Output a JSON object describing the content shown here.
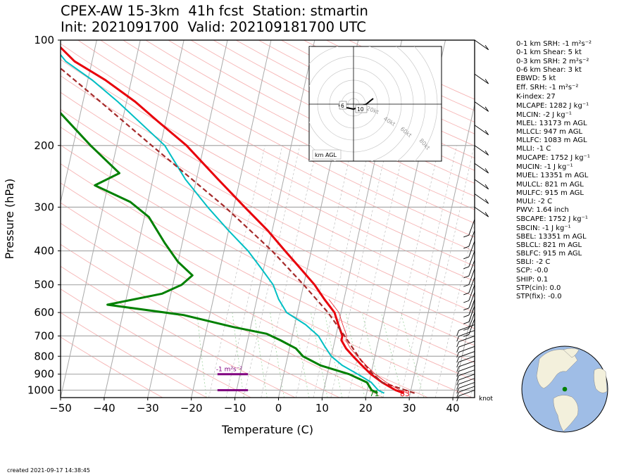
{
  "title": {
    "line1": "CPEX-AW 15-3km  41h fcst  Station: stmartin",
    "line2": "Init: 2021091700  Valid: 202109181700 UTC"
  },
  "chart_data": {
    "type": "line",
    "xlabel": "Temperature (C)",
    "ylabel": "Pressure (hPa)",
    "xlim": [
      -50,
      45
    ],
    "ylim": [
      1050,
      100
    ],
    "log_y": true,
    "skew": true,
    "x_ticks": [
      -50,
      -40,
      -30,
      -20,
      -10,
      0,
      10,
      20,
      30,
      40
    ],
    "y_ticks": [
      1000,
      900,
      800,
      700,
      600,
      500,
      400,
      300,
      200,
      100
    ],
    "colors": {
      "temperature": "#e8000b",
      "dewpoint": "#008000",
      "wetbulb": "#00bfc4",
      "parcel": "#a52a2a",
      "srh_bar": "#800080"
    },
    "series": [
      {
        "key": "temperature",
        "values": [
          [
            1020,
            28.5
          ],
          [
            1000,
            26.5
          ],
          [
            950,
            23.0
          ],
          [
            900,
            20.0
          ],
          [
            850,
            17.5
          ],
          [
            800,
            15.0
          ],
          [
            760,
            13.0
          ],
          [
            720,
            11.5
          ],
          [
            700,
            11.5
          ],
          [
            650,
            10.0
          ],
          [
            600,
            8.5
          ],
          [
            550,
            5.5
          ],
          [
            500,
            2.5
          ],
          [
            450,
            -1.5
          ],
          [
            400,
            -6.0
          ],
          [
            350,
            -11.0
          ],
          [
            300,
            -17.5
          ],
          [
            250,
            -25.0
          ],
          [
            200,
            -34.0
          ],
          [
            170,
            -42.0
          ],
          [
            150,
            -48.0
          ],
          [
            130,
            -56.0
          ],
          [
            115,
            -64.0
          ],
          [
            100,
            -70.0
          ]
        ]
      },
      {
        "key": "dewpoint",
        "values": [
          [
            1020,
            22.5
          ],
          [
            1000,
            21.0
          ],
          [
            950,
            19.5
          ],
          [
            900,
            15.0
          ],
          [
            850,
            8.0
          ],
          [
            800,
            3.5
          ],
          [
            760,
            1.5
          ],
          [
            720,
            -2.5
          ],
          [
            690,
            -6.0
          ],
          [
            660,
            -14.0
          ],
          [
            610,
            -26.0
          ],
          [
            570,
            -44.0
          ],
          [
            530,
            -32.0
          ],
          [
            500,
            -28.0
          ],
          [
            470,
            -26.0
          ],
          [
            430,
            -30.0
          ],
          [
            380,
            -34.0
          ],
          [
            320,
            -39.0
          ],
          [
            290,
            -44.0
          ],
          [
            260,
            -53.0
          ],
          [
            240,
            -48.0
          ],
          [
            200,
            -56.0
          ],
          [
            160,
            -65.0
          ],
          [
            140,
            -74.0
          ],
          [
            100,
            -85.0
          ]
        ]
      },
      {
        "key": "wetbulb",
        "values": [
          [
            1020,
            24.0
          ],
          [
            1000,
            22.5
          ],
          [
            950,
            20.5
          ],
          [
            900,
            17.0
          ],
          [
            850,
            13.0
          ],
          [
            800,
            10.0
          ],
          [
            750,
            8.0
          ],
          [
            700,
            6.0
          ],
          [
            650,
            2.5
          ],
          [
            600,
            -2.5
          ],
          [
            550,
            -5.0
          ],
          [
            500,
            -7.0
          ],
          [
            450,
            -10.5
          ],
          [
            400,
            -14.5
          ],
          [
            350,
            -20.0
          ],
          [
            300,
            -26.0
          ],
          [
            250,
            -32.5
          ],
          [
            200,
            -39.0
          ],
          [
            150,
            -52.0
          ],
          [
            130,
            -59.0
          ],
          [
            115,
            -66.0
          ],
          [
            100,
            -71.0
          ]
        ]
      },
      {
        "key": "parcel",
        "values": [
          [
            1020,
            31.0
          ],
          [
            950,
            23.0
          ],
          [
            900,
            20.5
          ],
          [
            821,
            17.0
          ],
          [
            700,
            12.0
          ],
          [
            600,
            7.0
          ],
          [
            500,
            0.0
          ],
          [
            400,
            -9.0
          ],
          [
            300,
            -22.0
          ],
          [
            200,
            -42.0
          ],
          [
            150,
            -56.0
          ],
          [
            100,
            -76.0
          ]
        ]
      }
    ],
    "surface_labels": [
      {
        "text": "71",
        "x": 22,
        "p": 1040
      },
      {
        "text": "83",
        "x": 29,
        "p": 1040
      }
    ],
    "srh_markers": [
      {
        "label": "-1 m²s⁻²",
        "x0": -14,
        "x1": -7,
        "p": 900
      },
      {
        "label": "",
        "x0": -14,
        "x1": -7,
        "p": 1000
      }
    ],
    "wind_unit": "knot"
  },
  "hodograph": {
    "ring_labels": [
      "20kt",
      "40kt",
      "60kt",
      "80kt"
    ],
    "height_labels": [
      "6",
      "10"
    ],
    "legend": "km AGL"
  },
  "stats": [
    "0-1 km SRH: -1 m²s⁻²",
    "0-1 km Shear: 5 kt",
    "0-3 km SRH: 2 m²s⁻²",
    "0-6 km Shear: 3 kt",
    "EBWD: 5 kt",
    "Eff. SRH: -1 m²s⁻²",
    "K-index: 27",
    "MLCAPE: 1282 J kg⁻¹",
    "MLCIN: -2 J kg⁻¹",
    "MLEL: 13173 m AGL",
    "MLLCL: 947 m AGL",
    "MLLFC: 1083 m AGL",
    "MLLI: -1 C",
    "MUCAPE: 1752 J kg⁻¹",
    "MUCIN: -1 J kg⁻¹",
    "MUEL: 13351 m AGL",
    "MULCL: 821 m AGL",
    "MULFC: 915 m AGL",
    "MULI: -2 C",
    "PWV: 1.64 inch",
    "SBCAPE: 1752 J kg⁻¹",
    "SBCIN: -1 J kg⁻¹",
    "SBEL: 13351 m AGL",
    "SBLCL: 821 m AGL",
    "SBLFC: 915 m AGL",
    "SBLI: -2 C",
    "SCP: -0.0",
    "SHIP: 0.1",
    "STP(cin): 0.0",
    "STP(fix): -0.0"
  ],
  "created": "created 2021-09-17 14:38:45"
}
